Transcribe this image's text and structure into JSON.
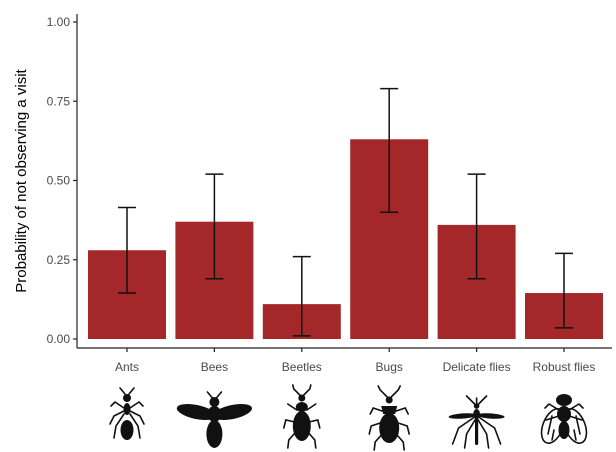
{
  "chart_data": {
    "type": "bar",
    "title": "",
    "xlabel": "",
    "ylabel": "Probability of not observing a visit",
    "ylim": [
      0,
      1
    ],
    "yticks": [
      "0.00",
      "0.25",
      "0.50",
      "0.75",
      "1.00"
    ],
    "ytick_values": [
      0,
      0.25,
      0.5,
      0.75,
      1.0
    ],
    "grid": false,
    "bar_color": "#a4272a",
    "categories": [
      "Ants",
      "Bees",
      "Beetles",
      "Bugs",
      "Delicate flies",
      "Robust flies"
    ],
    "values": [
      0.28,
      0.37,
      0.11,
      0.63,
      0.36,
      0.145
    ],
    "error_low": [
      0.145,
      0.19,
      0.01,
      0.4,
      0.19,
      0.035
    ],
    "error_high": [
      0.415,
      0.52,
      0.26,
      0.79,
      0.52,
      0.27
    ],
    "category_icons": [
      "ant-icon",
      "bee-icon",
      "beetle-icon",
      "bug-icon",
      "mosquito-icon",
      "fly-icon"
    ]
  }
}
